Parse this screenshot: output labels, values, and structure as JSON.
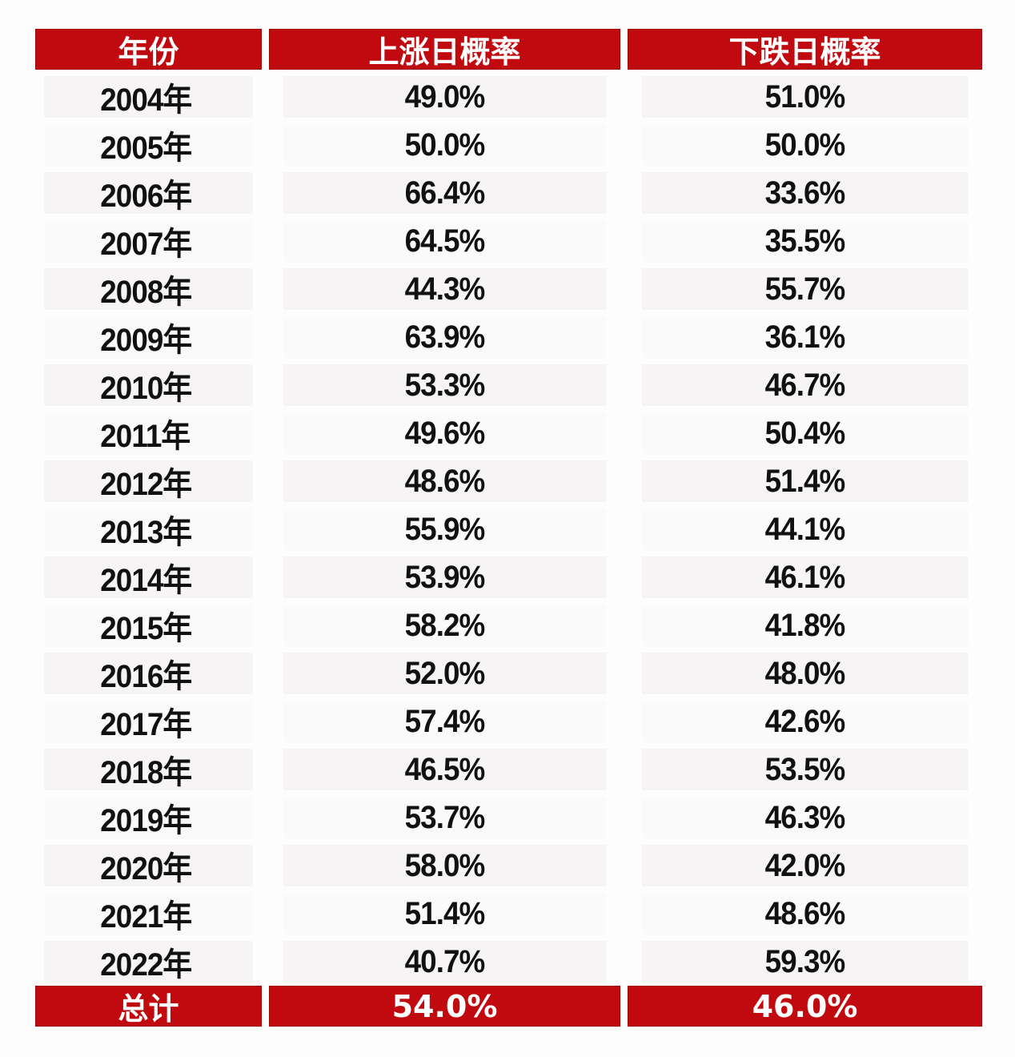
{
  "table": {
    "headers": [
      "年份",
      "上涨日概率",
      "下跌日概率"
    ],
    "rows": [
      {
        "year": "2004年",
        "up": "49.0%",
        "down": "51.0%"
      },
      {
        "year": "2005年",
        "up": "50.0%",
        "down": "50.0%"
      },
      {
        "year": "2006年",
        "up": "66.4%",
        "down": "33.6%"
      },
      {
        "year": "2007年",
        "up": "64.5%",
        "down": "35.5%"
      },
      {
        "year": "2008年",
        "up": "44.3%",
        "down": "55.7%"
      },
      {
        "year": "2009年",
        "up": "63.9%",
        "down": "36.1%"
      },
      {
        "year": "2010年",
        "up": "53.3%",
        "down": "46.7%"
      },
      {
        "year": "2011年",
        "up": "49.6%",
        "down": "50.4%"
      },
      {
        "year": "2012年",
        "up": "48.6%",
        "down": "51.4%"
      },
      {
        "year": "2013年",
        "up": "55.9%",
        "down": "44.1%"
      },
      {
        "year": "2014年",
        "up": "53.9%",
        "down": "46.1%"
      },
      {
        "year": "2015年",
        "up": "58.2%",
        "down": "41.8%"
      },
      {
        "year": "2016年",
        "up": "52.0%",
        "down": "48.0%"
      },
      {
        "year": "2017年",
        "up": "57.4%",
        "down": "42.6%"
      },
      {
        "year": "2018年",
        "up": "46.5%",
        "down": "53.5%"
      },
      {
        "year": "2019年",
        "up": "53.7%",
        "down": "46.3%"
      },
      {
        "year": "2020年",
        "up": "58.0%",
        "down": "42.0%"
      },
      {
        "year": "2021年",
        "up": "51.4%",
        "down": "48.6%"
      },
      {
        "year": "2022年",
        "up": "40.7%",
        "down": "59.3%"
      }
    ],
    "total": {
      "label": "总计",
      "up": "54.0%",
      "down": "46.0%"
    }
  },
  "colors": {
    "header_bg": "#c10a0f",
    "header_text": "#ffffff",
    "row_bg": "#f6f4f4",
    "text": "#111111"
  },
  "chart_data": {
    "type": "table",
    "title": "",
    "columns": [
      "年份",
      "上涨日概率",
      "下跌日概率"
    ],
    "categories": [
      "2004年",
      "2005年",
      "2006年",
      "2007年",
      "2008年",
      "2009年",
      "2010年",
      "2011年",
      "2012年",
      "2013年",
      "2014年",
      "2015年",
      "2016年",
      "2017年",
      "2018年",
      "2019年",
      "2020年",
      "2021年",
      "2022年",
      "总计"
    ],
    "series": [
      {
        "name": "上涨日概率",
        "values": [
          49.0,
          50.0,
          66.4,
          64.5,
          44.3,
          63.9,
          53.3,
          49.6,
          48.6,
          55.9,
          53.9,
          58.2,
          52.0,
          57.4,
          46.5,
          53.7,
          58.0,
          51.4,
          40.7,
          54.0
        ]
      },
      {
        "name": "下跌日概率",
        "values": [
          51.0,
          50.0,
          33.6,
          35.5,
          55.7,
          36.1,
          46.7,
          50.4,
          51.4,
          44.1,
          46.1,
          41.8,
          48.0,
          42.6,
          53.5,
          46.3,
          42.0,
          48.6,
          59.3,
          46.0
        ]
      }
    ],
    "unit": "%"
  }
}
